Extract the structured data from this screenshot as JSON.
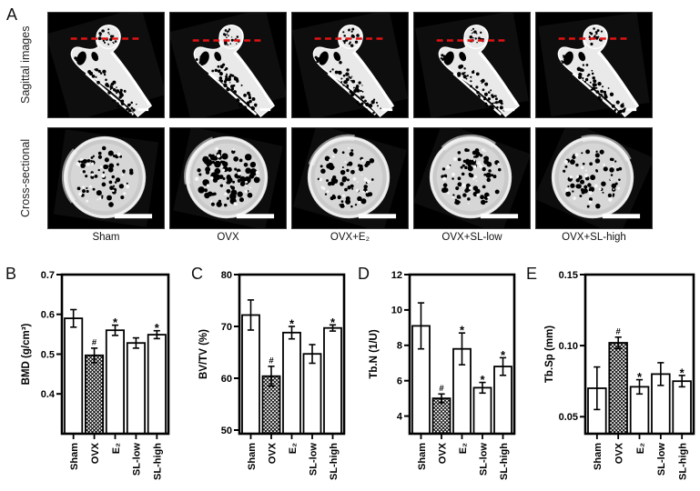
{
  "panel_a": {
    "label": "A",
    "row_labels": [
      "Sagittal images",
      "Cross-sectional"
    ],
    "column_labels": [
      "Sham",
      "OVX",
      "OVX+E₂",
      "OVX+SL-low",
      "OVX+SL-high"
    ],
    "colors": {
      "scan_background": "#000000",
      "bone": "#e9e9e9",
      "section_plane_line": "#e01212",
      "scale_bar": "#ffffff"
    }
  },
  "chart_data": [
    {
      "panel": "B",
      "type": "bar",
      "title": "",
      "xlabel": "",
      "ylabel": "BMD (g/cm³)",
      "categories": [
        "Sham",
        "OVX",
        "E₂",
        "SL-low",
        "SL-high"
      ],
      "values": [
        0.59,
        0.497,
        0.56,
        0.528,
        0.549
      ],
      "errors": [
        0.022,
        0.018,
        0.013,
        0.013,
        0.01
      ],
      "annotations": [
        "",
        "#",
        "*",
        "",
        "*"
      ],
      "hatched_category": "OVX",
      "bar_fill": "#ffffff",
      "ylim": [
        0.3,
        0.7
      ],
      "yticks": [
        0.4,
        0.5,
        0.6,
        0.7
      ],
      "ytick_labels": [
        "0.4",
        "0.5",
        "0.6",
        "0.7"
      ],
      "grid": false,
      "legend": "none"
    },
    {
      "panel": "C",
      "type": "bar",
      "title": "",
      "xlabel": "",
      "ylabel": "BV/TV (%)",
      "categories": [
        "Sham",
        "OVX",
        "E₂",
        "SL-low",
        "SL-high"
      ],
      "values": [
        72.2,
        60.4,
        68.8,
        64.7,
        69.7
      ],
      "errors": [
        2.9,
        1.9,
        1.2,
        1.8,
        0.6
      ],
      "annotations": [
        "",
        "#",
        "*",
        "",
        "*"
      ],
      "hatched_category": "OVX",
      "bar_fill": "#ffffff",
      "ylim": [
        49.3,
        80
      ],
      "yticks": [
        50,
        60,
        70,
        80
      ],
      "ytick_labels": [
        "50",
        "60",
        "70",
        "80"
      ],
      "grid": false,
      "legend": "none"
    },
    {
      "panel": "D",
      "type": "bar",
      "title": "",
      "xlabel": "",
      "ylabel": "Tb.N (1/U)",
      "categories": [
        "Sham",
        "OVX",
        "E₂",
        "SL-low",
        "SL-high"
      ],
      "values": [
        9.1,
        5.0,
        7.8,
        5.6,
        6.8
      ],
      "errors": [
        1.3,
        0.25,
        0.9,
        0.3,
        0.5
      ],
      "annotations": [
        "",
        "#",
        "*",
        "*",
        "*"
      ],
      "hatched_category": "OVX",
      "bar_fill": "#ffffff",
      "ylim": [
        3,
        12
      ],
      "yticks": [
        4,
        6,
        8,
        10,
        12
      ],
      "ytick_labels": [
        "4",
        "6",
        "8",
        "10",
        "12"
      ],
      "grid": false,
      "legend": "none"
    },
    {
      "panel": "E",
      "type": "bar",
      "title": "",
      "xlabel": "",
      "ylabel": "Tb.Sp (mm)",
      "categories": [
        "Sham",
        "OVX",
        "E₂",
        "SL-low",
        "SL-high"
      ],
      "values": [
        0.07,
        0.102,
        0.071,
        0.08,
        0.075
      ],
      "errors": [
        0.015,
        0.004,
        0.005,
        0.008,
        0.004
      ],
      "annotations": [
        "",
        "#",
        "*",
        "",
        "*"
      ],
      "hatched_category": "OVX",
      "bar_fill": "#ffffff",
      "ylim": [
        0.038,
        0.15
      ],
      "yticks": [
        0.05,
        0.1,
        0.15
      ],
      "ytick_labels": [
        "0.05",
        "0.10",
        "0.15"
      ],
      "grid": false,
      "legend": "none"
    }
  ]
}
